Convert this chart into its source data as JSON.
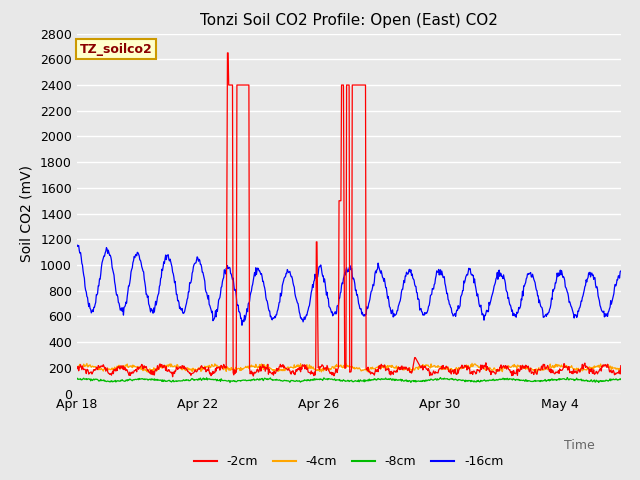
{
  "title": "Tonzi Soil CO2 Profile: Open (East) CO2",
  "ylabel": "Soil CO2 (mV)",
  "xlabel": "Time",
  "annotation_text": "TZ_soilco2",
  "annotation_bg": "#FFFFCC",
  "annotation_border": "#CC9900",
  "ylim": [
    0,
    2800
  ],
  "xlim": [
    0,
    18
  ],
  "bg_color": "#E8E8E8",
  "plot_bg": "#E8E8E8",
  "grid_color": "#FFFFFF",
  "colors": {
    "2cm": "#FF0000",
    "4cm": "#FFA500",
    "8cm": "#00BB00",
    "16cm": "#0000FF"
  },
  "legend_labels": [
    "-2cm",
    "-4cm",
    "-8cm",
    "-16cm"
  ],
  "x_tick_labels": [
    "Apr 18",
    "Apr 22",
    "Apr 26",
    "Apr 30",
    "May 4"
  ],
  "x_tick_positions": [
    0,
    4,
    8,
    12,
    16
  ],
  "y_ticks": [
    0,
    200,
    400,
    600,
    800,
    1000,
    1200,
    1400,
    1600,
    1800,
    2000,
    2200,
    2400,
    2600,
    2800
  ]
}
